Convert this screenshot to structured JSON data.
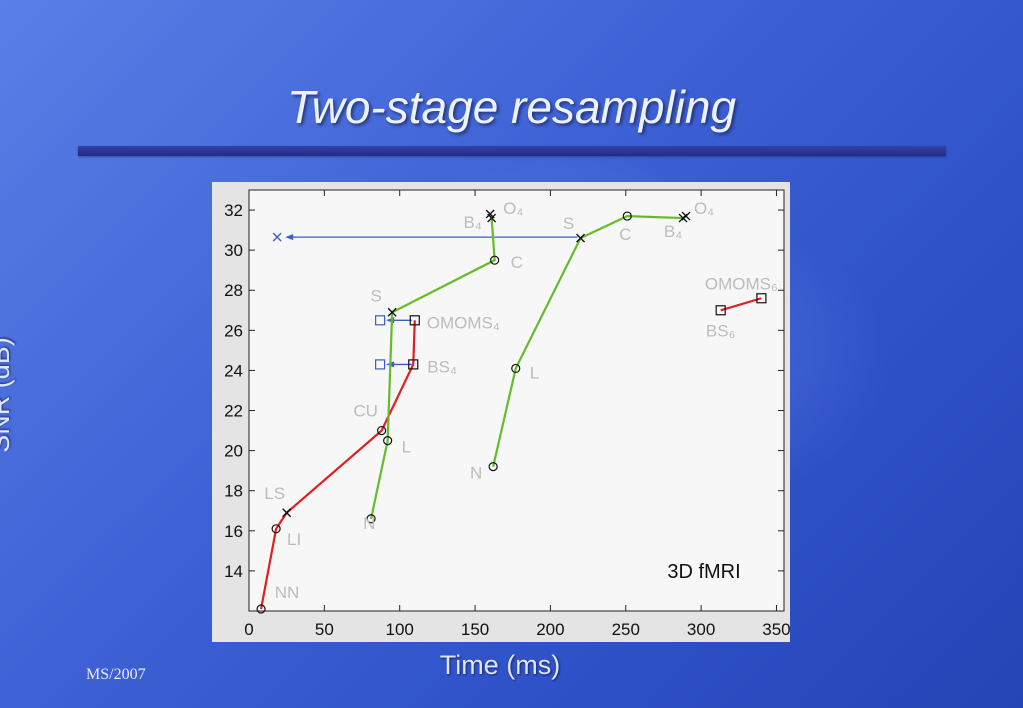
{
  "slide": {
    "title": "Two-stage resampling",
    "footer": "MS/2007"
  },
  "chart_data": {
    "type": "line",
    "xlabel": "Time (ms)",
    "ylabel": "SNR (dB)",
    "xlim": [
      0,
      355
    ],
    "ylim": [
      12,
      33
    ],
    "xticks": [
      0,
      50,
      100,
      150,
      200,
      250,
      300,
      350
    ],
    "yticks": [
      14,
      16,
      18,
      20,
      22,
      24,
      26,
      28,
      30,
      32
    ],
    "annotation": "3D fMRI",
    "colors": {
      "red": "#e02020",
      "green": "#66bb2a",
      "blue": "#3a5fc0",
      "labels": "#bcbcbc"
    },
    "series": [
      {
        "color": "red",
        "points": [
          {
            "x": 8,
            "y": 12.1,
            "marker": "o",
            "label": "NN"
          },
          {
            "x": 18,
            "y": 16.1,
            "marker": "o",
            "label": "LI"
          },
          {
            "x": 25,
            "y": 16.9,
            "marker": "x",
            "label": "LS"
          },
          {
            "x": 88,
            "y": 21.0,
            "marker": "o",
            "label": "CU"
          },
          {
            "x": 109,
            "y": 24.3,
            "marker": "s",
            "label": "BS₄"
          },
          {
            "x": 110,
            "y": 26.5,
            "marker": "s",
            "label": "OMOMS₄"
          }
        ]
      },
      {
        "color": "green",
        "points": [
          {
            "x": 81,
            "y": 16.6,
            "marker": "o",
            "label": "N"
          },
          {
            "x": 92,
            "y": 20.5,
            "marker": "o",
            "label": "L"
          },
          {
            "x": 95,
            "y": 26.9,
            "marker": "x",
            "label": "S"
          },
          {
            "x": 163,
            "y": 29.5,
            "marker": "o",
            "label": "C"
          },
          {
            "x": 161,
            "y": 31.6,
            "marker": "x",
            "label": "B₄"
          },
          {
            "x": 160,
            "y": 31.8,
            "marker": "x",
            "label": "O₄"
          }
        ]
      },
      {
        "color": "green",
        "points": [
          {
            "x": 162,
            "y": 19.2,
            "marker": "o",
            "label": "N"
          },
          {
            "x": 177,
            "y": 24.1,
            "marker": "o",
            "label": "L"
          },
          {
            "x": 220,
            "y": 30.6,
            "marker": "x",
            "label": "S"
          },
          {
            "x": 251,
            "y": 31.7,
            "marker": "o",
            "label": "C"
          },
          {
            "x": 288,
            "y": 31.6,
            "marker": "x",
            "label": "B₄"
          },
          {
            "x": 290,
            "y": 31.7,
            "marker": "x",
            "label": "O₄"
          }
        ]
      },
      {
        "color": "red",
        "points": [
          {
            "x": 313,
            "y": 27.0,
            "marker": "s",
            "label": "BS₆"
          },
          {
            "x": 340,
            "y": 27.6,
            "marker": "s",
            "label": "OMOMS₆"
          }
        ]
      }
    ],
    "arrows": [
      {
        "from": [
          218,
          30.65
        ],
        "to": [
          20,
          30.65
        ],
        "end_marker": "x"
      },
      {
        "from": [
          109,
          24.3
        ],
        "to": [
          87,
          24.3
        ],
        "end_marker": "s"
      },
      {
        "from": [
          108,
          26.5
        ],
        "to": [
          87,
          26.5
        ],
        "end_marker": "s"
      }
    ]
  }
}
